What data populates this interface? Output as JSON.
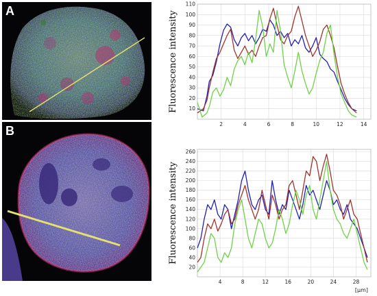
{
  "panels": {
    "a": {
      "letter": "A"
    },
    "b": {
      "letter": "B"
    }
  },
  "colors": {
    "blue_series": "#1f1fb4",
    "red_series": "#a0322a",
    "green_series": "#6ed247",
    "line_scan": "#e6e070",
    "grid": "#d9d9d9"
  },
  "chart_data": [
    {
      "type": "line",
      "panel": "A",
      "title": "",
      "xlabel": "",
      "ylabel": "Fluorescence intensity",
      "xlim": [
        0,
        14.6
      ],
      "ylim": [
        0,
        110
      ],
      "xticks": [
        2,
        4,
        6,
        8,
        10,
        12,
        14
      ],
      "yticks": [
        10,
        20,
        30,
        40,
        50,
        60,
        70,
        80,
        90,
        100,
        110
      ],
      "grid": true,
      "series": [
        {
          "color": "#1f1fb4",
          "x": [
            0.0,
            0.5,
            0.8,
            1.0,
            1.3,
            1.6,
            1.9,
            2.2,
            2.5,
            2.8,
            3.1,
            3.4,
            3.7,
            4.0,
            4.3,
            4.6,
            4.9,
            5.2,
            5.5,
            5.8,
            6.1,
            6.4,
            6.7,
            7.0,
            7.3,
            7.6,
            7.9,
            8.2,
            8.5,
            8.8,
            9.1,
            9.4,
            9.7,
            10.0,
            10.3,
            10.6,
            10.9,
            11.2,
            11.5,
            11.8,
            12.1,
            12.4,
            12.7,
            13.0,
            13.4
          ],
          "values": [
            10,
            8,
            22,
            36,
            42,
            55,
            72,
            85,
            91,
            88,
            76,
            70,
            78,
            82,
            75,
            80,
            72,
            78,
            86,
            84,
            95,
            90,
            80,
            84,
            78,
            82,
            70,
            76,
            72,
            80,
            68,
            64,
            70,
            78,
            62,
            58,
            55,
            48,
            45,
            36,
            28,
            20,
            14,
            10,
            8
          ]
        },
        {
          "color": "#a0322a",
          "x": [
            0.0,
            0.5,
            0.8,
            1.0,
            1.3,
            1.6,
            1.9,
            2.2,
            2.5,
            2.8,
            3.1,
            3.4,
            3.7,
            4.0,
            4.3,
            4.6,
            4.9,
            5.2,
            5.5,
            5.8,
            6.1,
            6.4,
            6.7,
            7.0,
            7.3,
            7.6,
            7.9,
            8.2,
            8.5,
            8.8,
            9.1,
            9.4,
            9.7,
            10.0,
            10.3,
            10.6,
            10.9,
            11.2,
            11.5,
            11.8,
            12.1,
            12.4,
            12.7,
            13.0,
            13.4
          ],
          "values": [
            6,
            10,
            18,
            30,
            45,
            58,
            64,
            72,
            80,
            86,
            66,
            58,
            64,
            70,
            62,
            66,
            60,
            70,
            78,
            80,
            96,
            106,
            90,
            76,
            72,
            80,
            84,
            98,
            108,
            94,
            80,
            70,
            60,
            66,
            74,
            86,
            90,
            80,
            68,
            50,
            34,
            24,
            16,
            10,
            6
          ]
        },
        {
          "color": "#6ed247",
          "x": [
            0.0,
            0.4,
            0.8,
            1.0,
            1.3,
            1.6,
            1.9,
            2.2,
            2.5,
            2.8,
            3.1,
            3.4,
            3.7,
            4.0,
            4.3,
            4.6,
            4.9,
            5.2,
            5.5,
            5.8,
            6.1,
            6.4,
            6.7,
            7.0,
            7.3,
            7.6,
            7.9,
            8.2,
            8.5,
            8.8,
            9.1,
            9.4,
            9.7,
            10.0,
            10.3,
            10.6,
            10.9,
            11.2,
            11.5,
            11.8,
            12.1,
            12.4,
            12.7,
            13.0,
            13.4
          ],
          "values": [
            16,
            2,
            6,
            12,
            26,
            30,
            22,
            28,
            40,
            32,
            48,
            56,
            60,
            52,
            64,
            54,
            76,
            104,
            88,
            60,
            72,
            64,
            104,
            84,
            52,
            40,
            30,
            46,
            64,
            46,
            34,
            24,
            30,
            44,
            56,
            64,
            82,
            90,
            62,
            40,
            24,
            16,
            8,
            4,
            2
          ]
        }
      ]
    },
    {
      "type": "line",
      "panel": "B",
      "title": "",
      "xlabel": "[µm]",
      "ylabel": "Fluorescence intensity",
      "xlim": [
        0,
        30.6
      ],
      "ylim": [
        0,
        265
      ],
      "xticks": [
        4,
        8,
        12,
        16,
        20,
        24,
        28
      ],
      "yticks": [
        20,
        40,
        60,
        80,
        100,
        120,
        140,
        160,
        180,
        200,
        220,
        240,
        260
      ],
      "grid": true,
      "series": [
        {
          "color": "#1f1fb4",
          "x": [
            0.0,
            0.6,
            1.2,
            1.8,
            2.4,
            3.0,
            3.6,
            4.2,
            4.8,
            5.4,
            6.0,
            6.6,
            7.2,
            7.8,
            8.4,
            9.0,
            9.6,
            10.2,
            10.8,
            11.4,
            12.0,
            12.6,
            13.2,
            13.8,
            14.4,
            15.0,
            15.6,
            16.2,
            16.8,
            17.4,
            18.0,
            18.6,
            19.2,
            19.8,
            20.4,
            21.0,
            21.6,
            22.2,
            22.8,
            23.4,
            24.0,
            24.6,
            25.2,
            25.8,
            26.4,
            27.0,
            27.6,
            28.2,
            28.8,
            29.4,
            30.0
          ],
          "values": [
            60,
            80,
            120,
            150,
            140,
            160,
            130,
            120,
            150,
            140,
            100,
            130,
            160,
            200,
            220,
            180,
            150,
            140,
            160,
            170,
            140,
            130,
            200,
            160,
            130,
            150,
            140,
            180,
            160,
            140,
            120,
            150,
            190,
            170,
            180,
            160,
            140,
            170,
            200,
            180,
            150,
            160,
            140,
            130,
            150,
            120,
            110,
            100,
            80,
            60,
            40
          ]
        },
        {
          "color": "#a0322a",
          "x": [
            0.0,
            0.6,
            1.2,
            1.8,
            2.4,
            3.0,
            3.6,
            4.2,
            4.8,
            5.4,
            6.0,
            6.6,
            7.2,
            7.8,
            8.4,
            9.0,
            9.6,
            10.2,
            10.8,
            11.4,
            12.0,
            12.6,
            13.2,
            13.8,
            14.4,
            15.0,
            15.6,
            16.2,
            16.8,
            17.4,
            18.0,
            18.6,
            19.2,
            19.8,
            20.4,
            21.0,
            21.6,
            22.2,
            22.8,
            23.4,
            24.0,
            24.6,
            25.2,
            25.8,
            26.4,
            27.0,
            27.6,
            28.2,
            28.8,
            29.4,
            30.0
          ],
          "values": [
            30,
            40,
            80,
            110,
            100,
            120,
            95,
            110,
            130,
            140,
            110,
            120,
            150,
            170,
            190,
            160,
            140,
            120,
            140,
            180,
            150,
            120,
            170,
            150,
            120,
            140,
            150,
            190,
            200,
            170,
            140,
            180,
            220,
            210,
            250,
            240,
            200,
            230,
            255,
            220,
            180,
            170,
            150,
            120,
            140,
            160,
            130,
            120,
            90,
            60,
            30
          ]
        },
        {
          "color": "#6ed247",
          "x": [
            0.0,
            0.6,
            1.2,
            1.8,
            2.4,
            3.0,
            3.6,
            4.2,
            4.8,
            5.4,
            6.0,
            6.6,
            7.2,
            7.8,
            8.4,
            9.0,
            9.6,
            10.2,
            10.8,
            11.4,
            12.0,
            12.6,
            13.2,
            13.8,
            14.4,
            15.0,
            15.6,
            16.2,
            16.8,
            17.4,
            18.0,
            18.6,
            19.2,
            19.8,
            20.4,
            21.0,
            21.6,
            22.2,
            22.8,
            23.4,
            24.0,
            24.6,
            25.2,
            25.8,
            26.4,
            27.0,
            27.6,
            28.2,
            28.8,
            29.4,
            30.0
          ],
          "values": [
            10,
            20,
            30,
            60,
            90,
            80,
            40,
            30,
            50,
            40,
            60,
            110,
            140,
            160,
            120,
            80,
            60,
            90,
            120,
            110,
            80,
            60,
            70,
            100,
            140,
            120,
            90,
            110,
            150,
            180,
            160,
            130,
            170,
            190,
            140,
            120,
            160,
            200,
            240,
            180,
            140,
            120,
            110,
            90,
            80,
            100,
            120,
            90,
            60,
            30,
            15
          ]
        }
      ]
    }
  ]
}
